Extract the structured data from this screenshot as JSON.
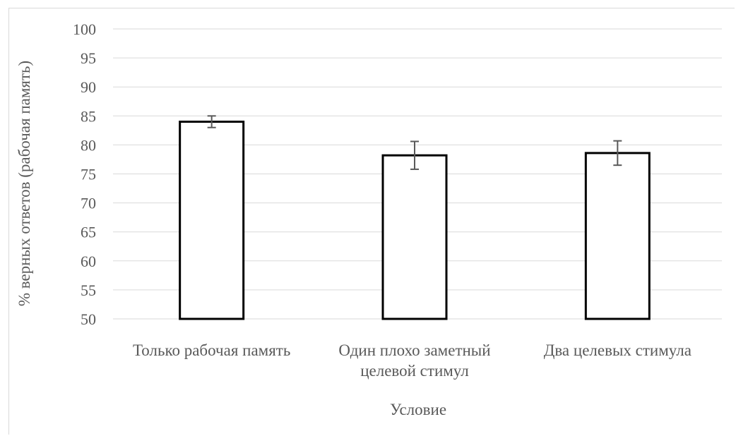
{
  "chart_data": {
    "type": "bar",
    "categories": [
      [
        "Только рабочая память"
      ],
      [
        "Один плохо заметный",
        "целевой стимул"
      ],
      [
        "Два целевых стимула"
      ]
    ],
    "values": [
      84.0,
      78.2,
      78.6
    ],
    "error": [
      1.0,
      2.4,
      2.1
    ],
    "ylim": [
      50,
      100
    ],
    "yticks": [
      50,
      55,
      60,
      65,
      70,
      75,
      80,
      85,
      90,
      95,
      100
    ],
    "xlabel": "Условие",
    "ylabel": "% верных ответов (рабочая память)",
    "grid": true,
    "colors": {
      "bar_fill": "#ffffff",
      "bar_stroke": "#000000",
      "grid": "#d9d9d9",
      "error": "#595959",
      "text": "#595959"
    }
  }
}
